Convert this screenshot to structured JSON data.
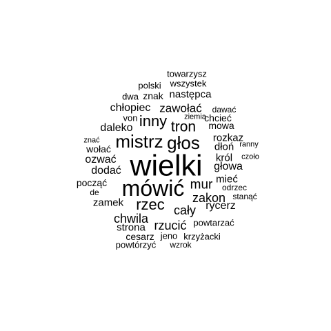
{
  "words": [
    {
      "text": "towarzysz"
    },
    {
      "text": "polski"
    },
    {
      "text": "wszystek"
    },
    {
      "text": "dwa"
    },
    {
      "text": "znak"
    },
    {
      "text": "następca"
    },
    {
      "text": "chłopiec"
    },
    {
      "text": "zawołać"
    },
    {
      "text": "dawać"
    },
    {
      "text": "von"
    },
    {
      "text": "ziemia"
    },
    {
      "text": "chcieć"
    },
    {
      "text": "inny"
    },
    {
      "text": "tron"
    },
    {
      "text": "mowa"
    },
    {
      "text": "daleko"
    },
    {
      "text": "rozkaz"
    },
    {
      "text": "znać"
    },
    {
      "text": "mistrz"
    },
    {
      "text": "głos"
    },
    {
      "text": "dłoń"
    },
    {
      "text": "ranny"
    },
    {
      "text": "wołać"
    },
    {
      "text": "król"
    },
    {
      "text": "czoło"
    },
    {
      "text": "ozwać"
    },
    {
      "text": "wielki"
    },
    {
      "text": "dodać"
    },
    {
      "text": "głowa"
    },
    {
      "text": "mieć"
    },
    {
      "text": "począć"
    },
    {
      "text": "mur"
    },
    {
      "text": "odrzec"
    },
    {
      "text": "de"
    },
    {
      "text": "mówić"
    },
    {
      "text": "stanąć"
    },
    {
      "text": "zakon"
    },
    {
      "text": "zamek"
    },
    {
      "text": "rzec"
    },
    {
      "text": "rycerz"
    },
    {
      "text": "cały"
    },
    {
      "text": "chwila"
    },
    {
      "text": "powtarzać"
    },
    {
      "text": "strona"
    },
    {
      "text": "rzucić"
    },
    {
      "text": "cesarz"
    },
    {
      "text": "jeno"
    },
    {
      "text": "krzyżacki"
    },
    {
      "text": "powtórzyć"
    },
    {
      "text": "wzrok"
    }
  ]
}
